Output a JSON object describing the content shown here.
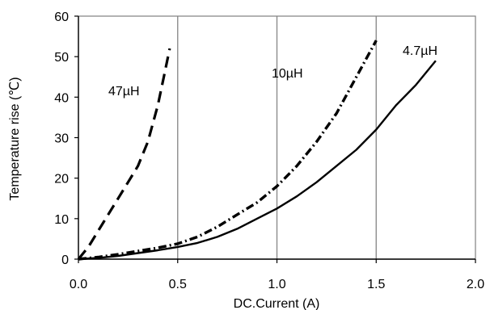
{
  "chart_data": {
    "type": "line",
    "xlabel": "DC.Current (A)",
    "ylabel": "Temperature rise (℃)",
    "xlim": [
      0,
      2.0
    ],
    "ylim": [
      0,
      60
    ],
    "x_ticks": [
      "0.0",
      "0.5",
      "1.0",
      "1.5",
      "2.0"
    ],
    "y_ticks": [
      "0",
      "10",
      "20",
      "30",
      "40",
      "50",
      "60"
    ],
    "grid": "vertical lines only",
    "legend": "none (inline series labels)",
    "series": [
      {
        "name": "47µH",
        "style": "dashed",
        "color": "#000000",
        "x": [
          0.0,
          0.05,
          0.1,
          0.15,
          0.2,
          0.25,
          0.3,
          0.35,
          0.4,
          0.43,
          0.46
        ],
        "y": [
          0,
          3,
          7,
          11,
          15,
          19,
          23,
          29,
          38,
          45,
          52
        ]
      },
      {
        "name": "10µH",
        "style": "dotted-dashed",
        "color": "#000000",
        "x": [
          0.0,
          0.1,
          0.2,
          0.3,
          0.4,
          0.5,
          0.6,
          0.7,
          0.8,
          0.9,
          1.0,
          1.1,
          1.2,
          1.3,
          1.4,
          1.5
        ],
        "y": [
          0,
          0.5,
          1.2,
          2,
          2.8,
          3.8,
          5.5,
          8,
          11,
          14,
          18,
          23,
          29,
          36,
          45,
          54
        ]
      },
      {
        "name": "4.7µH",
        "style": "solid",
        "color": "#000000",
        "x": [
          0.0,
          0.1,
          0.2,
          0.3,
          0.4,
          0.5,
          0.6,
          0.7,
          0.8,
          0.9,
          1.0,
          1.1,
          1.2,
          1.3,
          1.4,
          1.5,
          1.6,
          1.7,
          1.8
        ],
        "y": [
          0,
          0.3,
          0.8,
          1.5,
          2.2,
          3,
          4,
          5.5,
          7.5,
          10,
          12.5,
          15.5,
          19,
          23,
          27,
          32,
          38,
          43,
          49
        ]
      }
    ]
  }
}
